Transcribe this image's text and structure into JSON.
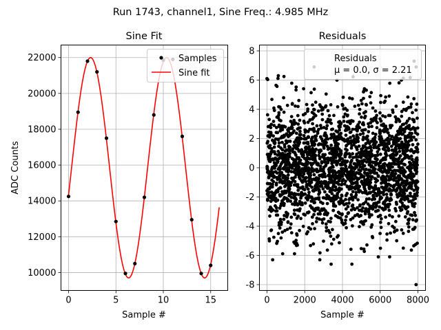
{
  "figure": {
    "suptitle": "Run 1743, channel1, Sine Freq.: 4.985 MHz"
  },
  "chart_data": [
    {
      "type": "line",
      "title": "Sine Fit",
      "xlabel": "Sample #",
      "ylabel": "ADC Counts",
      "xlim": [
        -0.8,
        16.8
      ],
      "ylim": [
        9000,
        22700
      ],
      "xticks": [
        0,
        5,
        10,
        15
      ],
      "yticks": [
        10000,
        12000,
        14000,
        16000,
        18000,
        20000,
        22000
      ],
      "grid": true,
      "legend": {
        "position": "top-right",
        "entries": [
          "Samples",
          "Sine fit"
        ]
      },
      "sine_fit": {
        "amplitude": 6150,
        "offset": 15850,
        "period": 8.025,
        "phase_sample": 2.325,
        "x_range": [
          0,
          15.9
        ],
        "color": "#ff0000"
      },
      "series": [
        {
          "name": "Samples",
          "kind": "scatter",
          "color": "#000000",
          "x": [
            0,
            1,
            2,
            3,
            4,
            5,
            6,
            7,
            8,
            9,
            10,
            11,
            12,
            13,
            14,
            15
          ],
          "y": [
            14250,
            18950,
            21800,
            21200,
            17500,
            12850,
            9950,
            10500,
            14200,
            18800,
            21850,
            21900,
            17600,
            12950,
            9950,
            10400
          ]
        },
        {
          "name": "Sine fit",
          "kind": "line",
          "color": "#ff0000"
        }
      ]
    },
    {
      "type": "scatter",
      "title": "Residuals",
      "xlabel": "Sample #",
      "ylabel": "",
      "xlim": [
        -400,
        8400
      ],
      "ylim": [
        -8.4,
        8.4
      ],
      "xticks": [
        0,
        2000,
        4000,
        6000,
        8000
      ],
      "yticks": [
        -8,
        -6,
        -4,
        -2,
        0,
        2,
        4,
        6,
        8
      ],
      "grid": true,
      "legend": {
        "position": "top-right",
        "entries": [
          "Residuals",
          "μ = 0.0, σ = 2.21"
        ]
      },
      "residual_stats": {
        "mean": 0.0,
        "sigma": 2.21,
        "count": 8000,
        "x_range": [
          0,
          8000
        ]
      },
      "series": [
        {
          "name": "Residuals",
          "color": "#000000",
          "outliers": [
            {
              "x": 7900,
              "y": -8.0
            },
            {
              "x": 300,
              "y": -6.3
            },
            {
              "x": 3400,
              "y": -6.6
            },
            {
              "x": 4500,
              "y": -6.6
            },
            {
              "x": 2800,
              "y": -6.3
            },
            {
              "x": 5900,
              "y": -6.1
            },
            {
              "x": 6500,
              "y": -6.1
            },
            {
              "x": 2500,
              "y": 6.9
            },
            {
              "x": 7800,
              "y": 7.3
            },
            {
              "x": 7900,
              "y": 6.9
            },
            {
              "x": 600,
              "y": 6.3
            },
            {
              "x": 0,
              "y": 6.1
            }
          ]
        }
      ]
    }
  ]
}
